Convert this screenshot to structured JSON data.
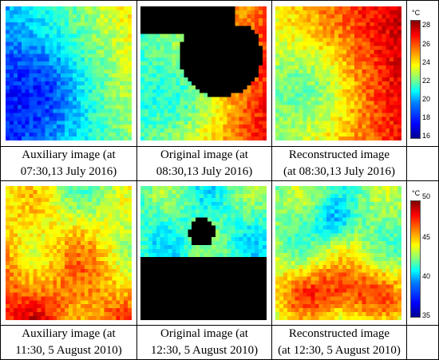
{
  "rows": [
    {
      "captions": {
        "auxiliary": [
          "Auxiliary image (at",
          "07:30,13 July 2016)"
        ],
        "original": [
          "Original image (at",
          "08:30,13 July 2016)"
        ],
        "reconstructed": [
          "Reconstructed image",
          "(at 08:30,13 July 2016)"
        ]
      },
      "colorbar": {
        "unit": "°C",
        "ticks": [
          "28",
          "26",
          "24",
          "22",
          "20",
          "18",
          "16"
        ]
      }
    },
    {
      "captions": {
        "auxiliary": [
          "Auxiliary image (at",
          "11:30, 5 August 2010)"
        ],
        "original": [
          "Original image (at",
          "12:30, 5 August 2010)"
        ],
        "reconstructed": [
          "Reconstructed image",
          "(at 12:30, 5 August 2010)"
        ]
      },
      "colorbar": {
        "unit": "°C",
        "ticks": [
          "50",
          "45",
          "40",
          "35"
        ]
      }
    }
  ],
  "palette": {
    "jet_low": "#00008f",
    "jet_high": "#800000",
    "missing_data": "#000000"
  }
}
